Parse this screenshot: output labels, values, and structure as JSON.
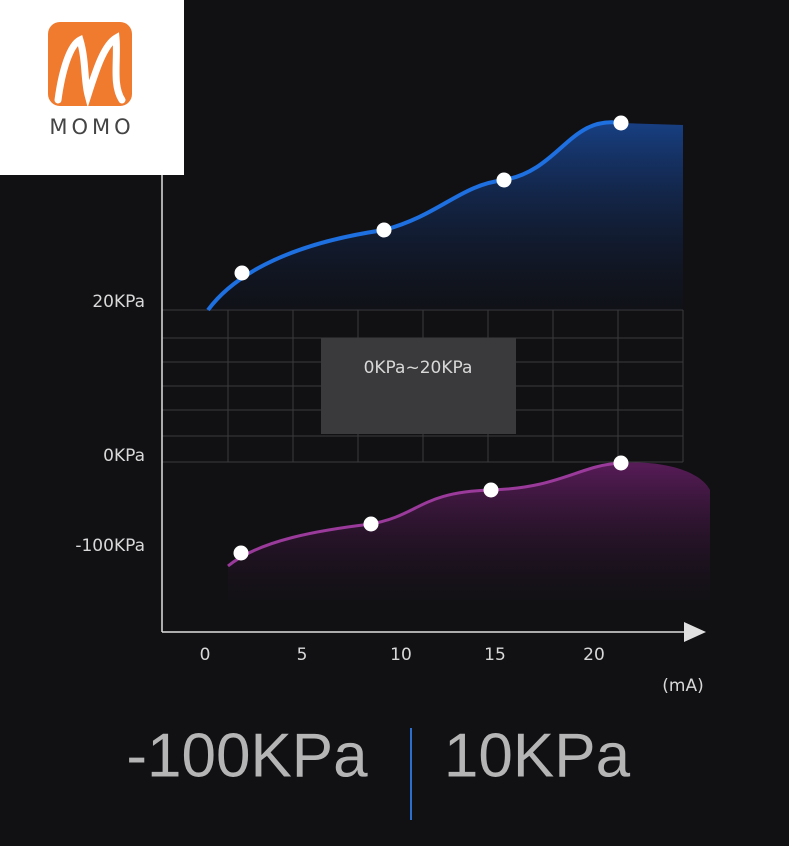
{
  "logo": {
    "text": "MOMO"
  },
  "y_axis_labels": [
    "20KPa",
    "0KPa",
    "-100KPa"
  ],
  "x_axis_labels": [
    "0",
    "5",
    "10",
    "15",
    "20"
  ],
  "x_unit": "(mA)",
  "range_box": "0KPa~20KPa",
  "specs": [
    "-100KPa",
    "10KPa"
  ]
}
